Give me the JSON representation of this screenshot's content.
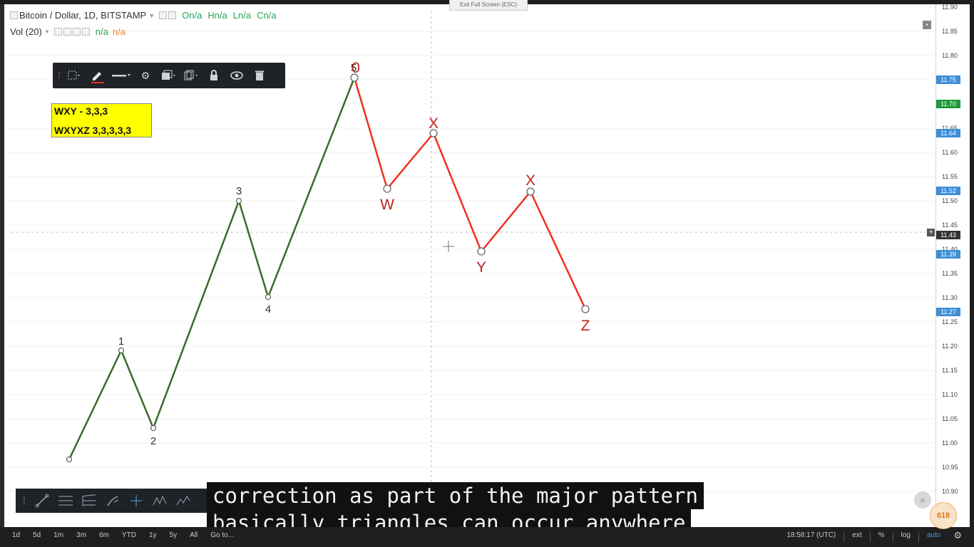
{
  "legend": {
    "symbol": "Bitcoin / Dollar, 1D, BITSTAMP",
    "ohlc": [
      "On/a",
      "Hn/a",
      "Ln/a",
      "Cn/a"
    ],
    "volume_label": "Vol (20)",
    "volume_values": [
      "n/a",
      "n/a"
    ]
  },
  "exit_fullscreen": "Exit Full Screen (ESC)",
  "annotation_box": [
    "WXY - 3,3,3",
    "WXYXZ 3,3,3,3,3"
  ],
  "price_axis": {
    "ticks": [
      "11.90",
      "11.85",
      "11.80",
      "11.75",
      "11.70",
      "11.65",
      "11.60",
      "11.55",
      "11.50",
      "11.45",
      "11.40",
      "11.35",
      "11.30",
      "11.25",
      "11.20",
      "11.15",
      "11.10",
      "11.05",
      "11.00",
      "10.95",
      "10.90"
    ],
    "badges": [
      {
        "text": "11.75",
        "color": "#3d8fd6"
      },
      {
        "text": "11.70",
        "color": "#1f9a3a"
      },
      {
        "text": "11.64",
        "color": "#3d8fd6"
      },
      {
        "text": "11.52",
        "color": "#3d8fd6"
      },
      {
        "text": "11.52",
        "color": "#3d8fd6"
      },
      {
        "text": "11.43",
        "color": "#333333"
      },
      {
        "text": "11.39",
        "color": "#3d8fd6"
      },
      {
        "text": "11.27",
        "color": "#3d8fd6"
      }
    ]
  },
  "wave_labels": {
    "impulse": [
      "1",
      "2",
      "3",
      "4",
      "5"
    ],
    "correction": [
      "0",
      "W",
      "X",
      "Y",
      "X",
      "Z"
    ]
  },
  "colors": {
    "impulse": "#3a6b2a",
    "correction": "#f03020",
    "label_red": "#c0231a"
  },
  "toolbar_icons": [
    "grip-icon",
    "select-area-icon",
    "pencil-icon",
    "line-style-icon",
    "gear-icon",
    "layers-icon",
    "clone-icon",
    "lock-icon",
    "eye-icon",
    "trash-icon"
  ],
  "drawing_tools": [
    "grip-icon",
    "trendline-icon",
    "fib-icon",
    "channel-icon",
    "brush-icon",
    "crosshair-icon",
    "pattern-icon",
    "wave-icon",
    "more-icon"
  ],
  "bottom_bar": {
    "timeframes": [
      "1d",
      "5d",
      "1m",
      "3m",
      "6m",
      "YTD",
      "1y",
      "5y",
      "All",
      "Go to..."
    ],
    "clock": "18:58:17 (UTC)",
    "options": [
      "ext",
      "%",
      "log",
      "auto"
    ]
  },
  "caption": [
    "correction as part of the major pattern",
    "basically triangles can occur anywhere"
  ],
  "logo_text": "618"
}
